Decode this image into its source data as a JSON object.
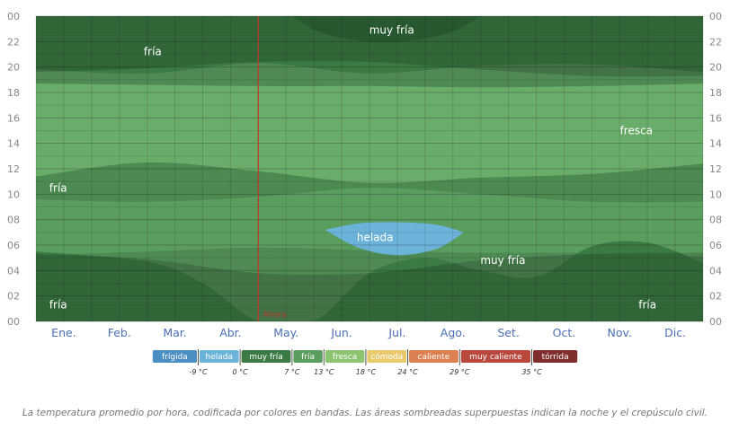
{
  "chart_data": {
    "type": "heatmap",
    "title": "",
    "xlabel": "",
    "ylabel": "",
    "months": [
      "Ene.",
      "Feb.",
      "Mar.",
      "Abr.",
      "May.",
      "Jun.",
      "Jul.",
      "Ago.",
      "Set.",
      "Oct.",
      "Nov.",
      "Dic."
    ],
    "hours": [
      "00",
      "02",
      "04",
      "06",
      "08",
      "10",
      "12",
      "14",
      "16",
      "18",
      "20",
      "22",
      "00"
    ],
    "ylim": [
      0,
      24
    ],
    "night_shading": true,
    "current_marker": {
      "label": "Ahora",
      "month_position": 4.0
    },
    "region_labels": [
      {
        "text": "muy fría",
        "month": 6.4,
        "hour": 22.9
      },
      {
        "text": "fría",
        "month": 2.1,
        "hour": 21.2
      },
      {
        "text": "fresca",
        "month": 10.8,
        "hour": 15.0
      },
      {
        "text": "fría",
        "month": 0.4,
        "hour": 10.5
      },
      {
        "text": "helada",
        "month": 6.1,
        "hour": 6.6
      },
      {
        "text": "muy fría",
        "month": 8.4,
        "hour": 4.8
      },
      {
        "text": "fría",
        "month": 0.4,
        "hour": 1.3
      },
      {
        "text": "fría",
        "month": 11.0,
        "hour": 1.3
      }
    ],
    "bands": [
      {
        "name": "fría",
        "color": "#4c8a52",
        "upper": [
          [
            0,
            13.2
          ],
          [
            2,
            13.3
          ],
          [
            4,
            12.9
          ],
          [
            6,
            13.4
          ],
          [
            8,
            12.9
          ],
          [
            10,
            12.4
          ],
          [
            12,
            13.0
          ]
        ],
        "lower": [
          [
            0,
            7.3
          ],
          [
            2,
            7.0
          ],
          [
            4,
            5.2
          ],
          [
            6,
            5.0
          ],
          [
            8,
            4.8
          ],
          [
            10,
            6.6
          ],
          [
            12,
            7.1
          ]
        ]
      },
      {
        "name": "fresca",
        "color": "#6aac6a",
        "upper": [
          [
            0,
            18.7
          ],
          [
            2,
            18.6
          ],
          [
            4,
            18.5
          ],
          [
            6,
            18.5
          ],
          [
            8,
            18.4
          ],
          [
            10,
            18.5
          ],
          [
            12,
            18.7
          ]
        ],
        "lower": [
          [
            0,
            11.4
          ],
          [
            2,
            12.5
          ],
          [
            4,
            11.8
          ],
          [
            6,
            10.9
          ],
          [
            8,
            11.3
          ],
          [
            10,
            11.6
          ],
          [
            12,
            12.4
          ]
        ]
      },
      {
        "name": "fría",
        "color": "#5b9d5f",
        "upper": [
          [
            0,
            9.6
          ],
          [
            2,
            9.4
          ],
          [
            4,
            9.8
          ],
          [
            6,
            10.5
          ],
          [
            8,
            10.0
          ],
          [
            10,
            9.4
          ],
          [
            12,
            9.4
          ]
        ],
        "lower": [
          [
            0,
            5.2
          ],
          [
            2,
            5.5
          ],
          [
            4,
            5.8
          ],
          [
            6,
            5.6
          ],
          [
            8,
            5.4
          ],
          [
            10,
            5.4
          ],
          [
            12,
            5.1
          ]
        ]
      },
      {
        "name": "muy fría",
        "color": "#3b7a44",
        "upper": [
          [
            0,
            5.5
          ],
          [
            2,
            4.7
          ],
          [
            3,
            3.0
          ],
          [
            4,
            0
          ],
          [
            5,
            0
          ],
          [
            6,
            3.8
          ],
          [
            7,
            5.0
          ],
          [
            8,
            4.0
          ],
          [
            9,
            3.5
          ],
          [
            10,
            5.9
          ],
          [
            11,
            6.2
          ],
          [
            12,
            4.6
          ]
        ],
        "lower": [
          [
            0,
            0
          ],
          [
            12,
            0
          ]
        ]
      },
      {
        "name": "muy fría",
        "color": "#3b7a44",
        "upper": [
          [
            0,
            24
          ],
          [
            12,
            24
          ]
        ],
        "lower": [
          [
            0,
            19.8
          ],
          [
            2,
            19.5
          ],
          [
            4,
            20.3
          ],
          [
            6,
            19.5
          ],
          [
            8,
            20.1
          ],
          [
            10,
            20.2
          ],
          [
            12,
            19.6
          ]
        ]
      },
      {
        "name": "muy fría",
        "color": "#2f6a3a",
        "upper": [
          [
            4.6,
            24
          ],
          [
            8.0,
            24
          ]
        ],
        "lower": [
          [
            4.6,
            24
          ],
          [
            5.2,
            22.6
          ],
          [
            6.0,
            22.0
          ],
          [
            6.8,
            22.1
          ],
          [
            7.5,
            22.8
          ],
          [
            8.0,
            24
          ]
        ]
      },
      {
        "name": "helada",
        "color": "#6cb3d9",
        "upper": [
          [
            5.2,
            7.2
          ],
          [
            5.8,
            7.7
          ],
          [
            6.5,
            7.8
          ],
          [
            7.2,
            7.6
          ],
          [
            7.7,
            7.0
          ]
        ],
        "lower": [
          [
            5.2,
            7.2
          ],
          [
            5.8,
            5.8
          ],
          [
            6.5,
            5.2
          ],
          [
            7.2,
            5.7
          ],
          [
            7.7,
            7.0
          ]
        ]
      }
    ],
    "night_bands": [
      {
        "upper": [
          [
            0,
            5.3
          ],
          [
            2,
            4.9
          ],
          [
            4,
            3.8
          ],
          [
            6,
            3.8
          ],
          [
            8,
            4.8
          ],
          [
            10,
            5.3
          ],
          [
            12,
            5.4
          ]
        ],
        "lower": [
          [
            0,
            0
          ],
          [
            12,
            0
          ]
        ]
      },
      {
        "upper": [
          [
            0,
            24
          ],
          [
            12,
            24
          ]
        ],
        "lower": [
          [
            0,
            19.6
          ],
          [
            2,
            19.9
          ],
          [
            4,
            20.4
          ],
          [
            6,
            20.4
          ],
          [
            8,
            19.8
          ],
          [
            10,
            19.3
          ],
          [
            12,
            19.3
          ]
        ]
      }
    ],
    "legend": [
      {
        "label": "frígida",
        "color": "#4b8ec1"
      },
      {
        "label": "helada",
        "color": "#6cb3d9"
      },
      {
        "label": "muy fría",
        "color": "#3b7a44"
      },
      {
        "label": "fría",
        "color": "#5b9d5f"
      },
      {
        "label": "fresca",
        "color": "#8cc46f"
      },
      {
        "label": "cómoda",
        "color": "#e8c96c"
      },
      {
        "label": "caliente",
        "color": "#db8050"
      },
      {
        "label": "muy caliente",
        "color": "#b8473c"
      },
      {
        "label": "tórrida",
        "color": "#7f2d2d"
      }
    ],
    "legend_thresholds": [
      "-9 °C",
      "0 °C",
      "7 °C",
      "13 °C",
      "18 °C",
      "24 °C",
      "29 °C",
      "35 °C"
    ],
    "base_color": "#4f8a55",
    "peak_color": "#8cc46f",
    "marker_color": "#c0392b"
  },
  "caption": "La temperatura promedio por hora, codificada por colores en bandas. Las áreas sombreadas superpuestas indican la noche y el crepúsculo civil."
}
